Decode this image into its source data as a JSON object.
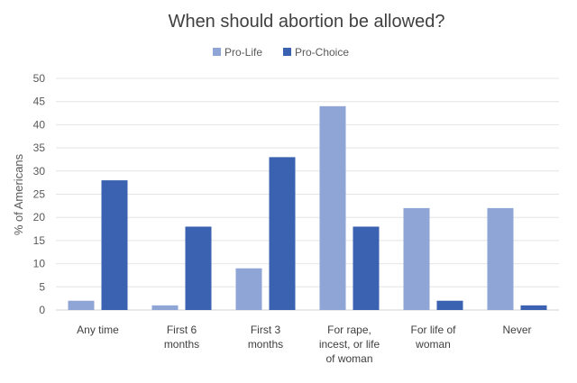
{
  "chart_data": {
    "type": "bar",
    "title": "When should abortion be allowed?",
    "xlabel": "",
    "ylabel": "% of Americans",
    "ylim": [
      0,
      50
    ],
    "yticks": [
      0,
      5,
      10,
      15,
      20,
      25,
      30,
      35,
      40,
      45,
      50
    ],
    "grid": true,
    "legend_position": "top-center",
    "categories": [
      [
        "Any time"
      ],
      [
        "First 6",
        "months"
      ],
      [
        "First 3",
        "months"
      ],
      [
        "For rape,",
        "incest, or life",
        "of woman"
      ],
      [
        "For life of",
        "woman"
      ],
      [
        "Never"
      ]
    ],
    "series": [
      {
        "name": "Pro-Life",
        "color": "#8fa5d6",
        "values": [
          2,
          1,
          9,
          44,
          22,
          22
        ]
      },
      {
        "name": "Pro-Choice",
        "color": "#3a62b0",
        "values": [
          28,
          18,
          33,
          18,
          2,
          1
        ]
      }
    ]
  }
}
